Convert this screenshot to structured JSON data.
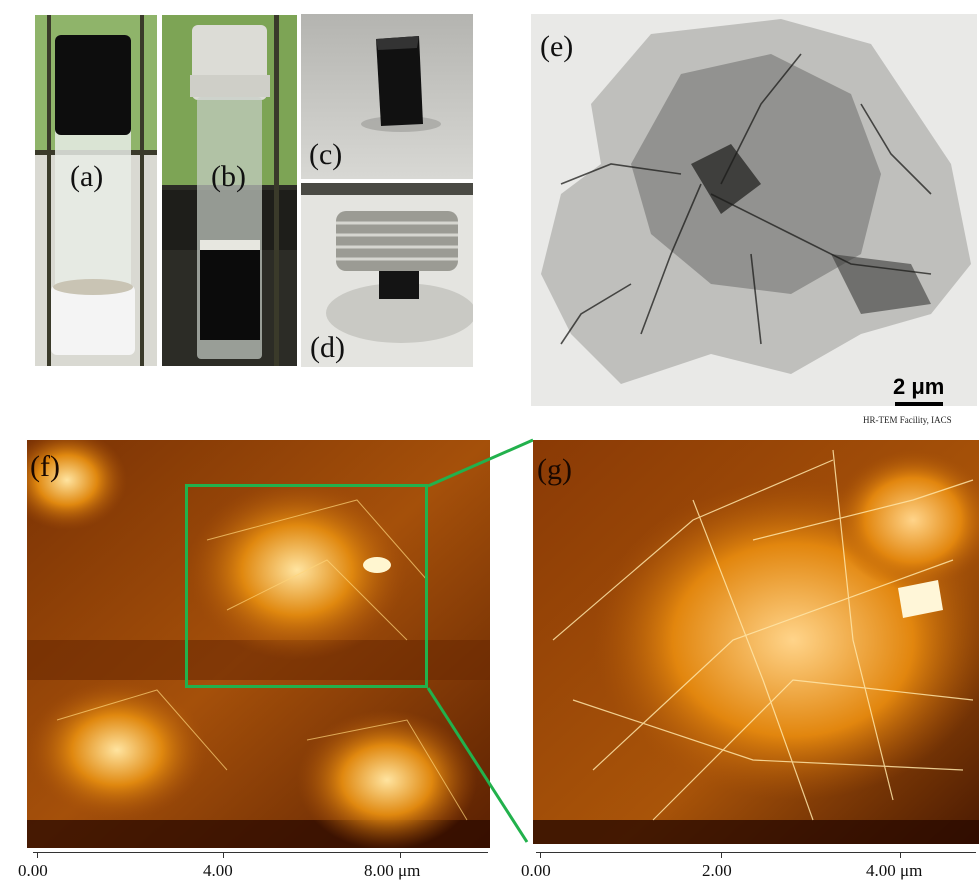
{
  "panels": {
    "a": {
      "label": "(a)"
    },
    "b": {
      "label": "(b)"
    },
    "c": {
      "label": "(c)"
    },
    "d": {
      "label": "(d)"
    },
    "e": {
      "label": "(e)",
      "scale_bar": "2 μm",
      "facility": "HR-TEM Facility, IACS"
    },
    "f": {
      "label": "(f)",
      "ticks": [
        "0.00",
        "4.00",
        "8.00 μm"
      ]
    },
    "g": {
      "label": "(g)",
      "ticks": [
        "0.00",
        "2.00",
        "4.00 μm"
      ]
    }
  },
  "colors": {
    "zoom_box": "#22b14c",
    "afm_low": "#3a1000",
    "afm_mid": "#c86a0e",
    "afm_high": "#ffe9a8"
  }
}
